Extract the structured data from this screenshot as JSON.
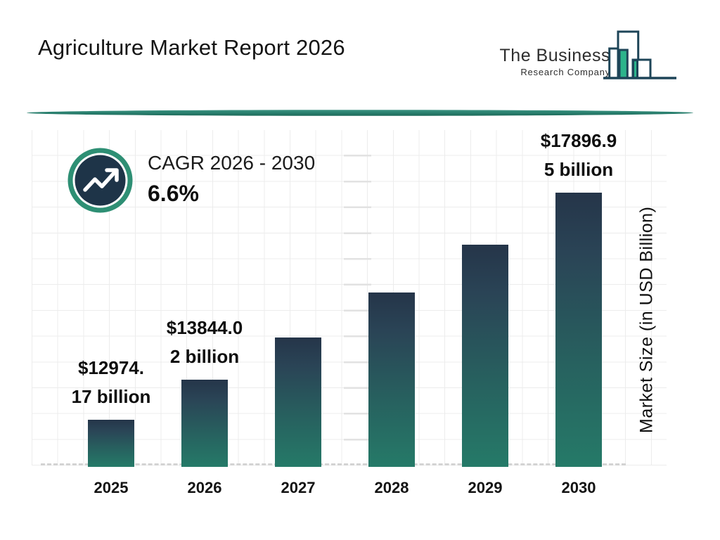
{
  "header": {
    "title": "Agriculture Market Report 2026",
    "logo": {
      "line1": "The Business",
      "line2": "Research Company"
    }
  },
  "cagr": {
    "label": "CAGR 2026 - 2030",
    "value": "6.6%"
  },
  "chart_data": {
    "type": "bar",
    "title": "Agriculture Market Report 2026",
    "categories": [
      "2025",
      "2026",
      "2027",
      "2028",
      "2029",
      "2030"
    ],
    "values": [
      12974.17,
      13844.02,
      14757.72,
      15731.73,
      16770.02,
      17896.95
    ],
    "unit": "USD Billion",
    "bar_labels": [
      "$12974.17 billion",
      "$13844.02 billion",
      null,
      null,
      null,
      "$17896.95 billion"
    ],
    "bar_label_lines": [
      [
        "$12974.",
        "17 billion"
      ],
      [
        "$13844.0",
        "2 billion"
      ],
      null,
      null,
      null,
      [
        "$17896.9",
        "5 billion"
      ]
    ],
    "xlabel": "",
    "ylabel": "Market Size (in USD Billion)",
    "ylim": [
      11950,
      17900
    ],
    "grid": true,
    "legend": "none",
    "colors": {
      "bar_top": "#253549",
      "bar_bottom": "#257a68"
    }
  },
  "branding": {
    "accent_green": "#2e8f74",
    "dark_navy": "#1e3448",
    "divider_teal": "#2a8170",
    "logo_outline": "#1e4558",
    "logo_green": "#2cb48b"
  }
}
